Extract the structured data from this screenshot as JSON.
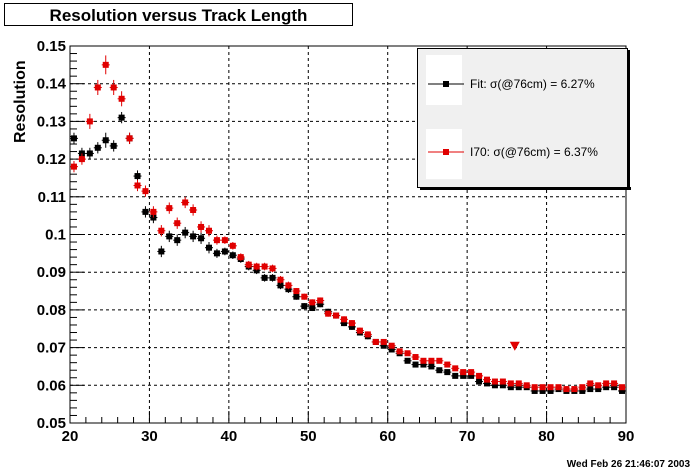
{
  "title": "Resolution versus Track Length",
  "ylabel": "Resolution",
  "timestamp": "Wed Feb 26 21:46:07 2003",
  "legend": {
    "fit": "Fit:  σ(@76cm) =  6.27%",
    "i70": "I70:  σ(@76cm) =  6.37%"
  },
  "colors": {
    "fit": "#000000",
    "i70": "#e00000",
    "grid": "#000000"
  },
  "chart_data": {
    "type": "scatter",
    "title": "Resolution versus Track Length",
    "xlabel": "",
    "ylabel": "Resolution",
    "xlim": [
      20,
      90
    ],
    "ylim": [
      0.05,
      0.15
    ],
    "grid": true,
    "legend_position": "top-right",
    "xticks": [
      "20",
      "30",
      "40",
      "50",
      "60",
      "70",
      "80",
      "90"
    ],
    "yticks": [
      "0.05",
      "0.06",
      "0.07",
      "0.08",
      "0.09",
      "0.1",
      "0.11",
      "0.12",
      "0.13",
      "0.14",
      "0.15"
    ],
    "x": [
      20.5,
      21.5,
      22.5,
      23.5,
      24.5,
      25.5,
      26.5,
      27.5,
      28.5,
      29.5,
      30.5,
      31.5,
      32.5,
      33.5,
      34.5,
      35.5,
      36.5,
      37.5,
      38.5,
      39.5,
      40.5,
      41.5,
      42.5,
      43.5,
      44.5,
      45.5,
      46.5,
      47.5,
      48.5,
      49.5,
      50.5,
      51.5,
      52.5,
      53.5,
      54.5,
      55.5,
      56.5,
      57.5,
      58.5,
      59.5,
      60.5,
      61.5,
      62.5,
      63.5,
      64.5,
      65.5,
      66.5,
      67.5,
      68.5,
      69.5,
      70.5,
      71.5,
      72.5,
      73.5,
      74.5,
      75.5,
      76.5,
      77.5,
      78.5,
      79.5,
      80.5,
      81.5,
      82.5,
      83.5,
      84.5,
      85.5,
      86.5,
      87.5,
      88.5,
      89.5
    ],
    "series": [
      {
        "name": "Fit",
        "values": [
          0.1255,
          0.1215,
          0.1215,
          0.123,
          0.125,
          0.1235,
          0.131,
          0.1255,
          0.1155,
          0.106,
          0.1045,
          0.0955,
          0.0995,
          0.0985,
          0.1005,
          0.0995,
          0.099,
          0.0965,
          0.095,
          0.0955,
          0.0945,
          0.0935,
          0.0915,
          0.0905,
          0.0885,
          0.0885,
          0.0865,
          0.0855,
          0.0835,
          0.081,
          0.0805,
          0.0815,
          0.0795,
          0.0785,
          0.0765,
          0.0755,
          0.074,
          0.073,
          0.0715,
          0.0705,
          0.0695,
          0.0685,
          0.0665,
          0.0655,
          0.0655,
          0.065,
          0.064,
          0.0635,
          0.0625,
          0.0625,
          0.0625,
          0.061,
          0.0605,
          0.06,
          0.06,
          0.0595,
          0.0595,
          0.0595,
          0.0585,
          0.0585,
          0.0585,
          0.059,
          0.0585,
          0.0585,
          0.0585,
          0.059,
          0.059,
          0.0595,
          0.0595,
          0.0585
        ]
      },
      {
        "name": "I70",
        "values": [
          0.118,
          0.12,
          0.13,
          0.139,
          0.145,
          0.139,
          0.136,
          0.1255,
          0.113,
          0.1115,
          0.106,
          0.101,
          0.107,
          0.103,
          0.1085,
          0.1065,
          0.102,
          0.101,
          0.0985,
          0.0985,
          0.097,
          0.094,
          0.092,
          0.0915,
          0.0915,
          0.091,
          0.088,
          0.0865,
          0.085,
          0.0835,
          0.082,
          0.0825,
          0.079,
          0.0785,
          0.0775,
          0.0765,
          0.0745,
          0.0735,
          0.0715,
          0.0715,
          0.0705,
          0.069,
          0.0685,
          0.0675,
          0.0665,
          0.0665,
          0.0665,
          0.0655,
          0.0645,
          0.0635,
          0.0635,
          0.0625,
          0.0615,
          0.061,
          0.061,
          0.0605,
          0.0605,
          0.06,
          0.0595,
          0.0595,
          0.0595,
          0.0595,
          0.059,
          0.059,
          0.0595,
          0.0605,
          0.06,
          0.0605,
          0.0605,
          0.0595
        ]
      }
    ],
    "errors": {
      "Fit": [
        0.0015,
        0.0015,
        0.0015,
        0.0015,
        0.002,
        0.0015,
        0.0015,
        0.0015,
        0.0015,
        0.0015,
        0.0015,
        0.0015,
        0.0015,
        0.0015,
        0.0015,
        0.0015,
        0.0015,
        0.0015,
        0.0012,
        0.001,
        0.001,
        0.001,
        0.001,
        0.001,
        0.001,
        0.001,
        0.001,
        0.001,
        0.0008,
        0.0008,
        0.0008,
        0.0008,
        0.0008,
        0.0008,
        0.0008,
        0.0008,
        0.0008,
        0.0008,
        0.0005,
        0.0005,
        0.0005,
        0.0005,
        0.0005,
        0.0005,
        0.0005,
        0.0005,
        0.0005,
        0.0005,
        0.0005,
        0.0005,
        0.0005,
        0.0005,
        0.0005,
        0.0005,
        0.0005,
        0.0005,
        0.0005,
        0.0005,
        0.0005,
        0.0005,
        0.0005,
        0.0005,
        0.0005,
        0.0005,
        0.0005,
        0.0005,
        0.0005,
        0.0005,
        0.0005,
        0.0005
      ],
      "I70": [
        0.0015,
        0.0015,
        0.002,
        0.002,
        0.0025,
        0.002,
        0.002,
        0.0015,
        0.0015,
        0.0015,
        0.0015,
        0.0015,
        0.0015,
        0.0015,
        0.0015,
        0.0015,
        0.0015,
        0.0015,
        0.0012,
        0.001,
        0.001,
        0.001,
        0.001,
        0.001,
        0.001,
        0.001,
        0.001,
        0.001,
        0.0008,
        0.0008,
        0.0008,
        0.0008,
        0.0008,
        0.0008,
        0.0008,
        0.0008,
        0.0008,
        0.0008,
        0.0005,
        0.0005,
        0.0005,
        0.0005,
        0.0005,
        0.0005,
        0.0005,
        0.0005,
        0.0005,
        0.0005,
        0.0005,
        0.0005,
        0.0005,
        0.0005,
        0.0005,
        0.0005,
        0.0005,
        0.0005,
        0.0005,
        0.0005,
        0.0005,
        0.0005,
        0.0005,
        0.0005,
        0.0005,
        0.0005,
        0.0005,
        0.0005,
        0.0005,
        0.0005,
        0.0005,
        0.0005
      ]
    },
    "annotations": [
      {
        "type": "triangle-down",
        "x": 76,
        "y": 0.0705,
        "series": "I70"
      }
    ]
  }
}
